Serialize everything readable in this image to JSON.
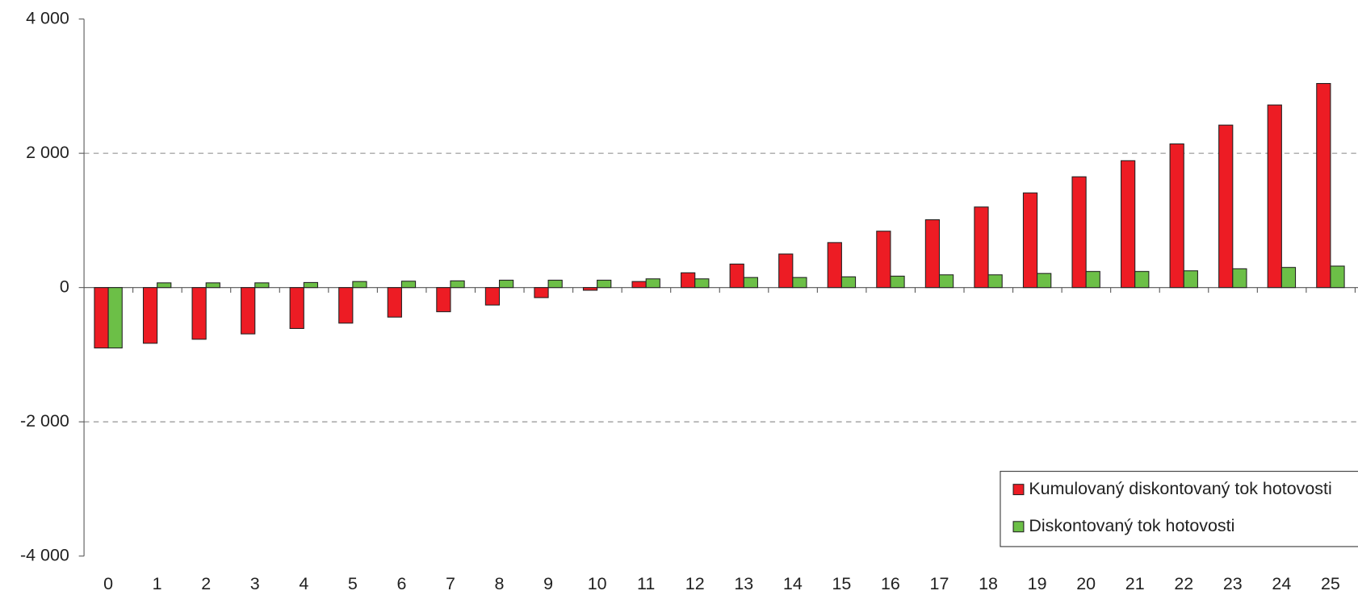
{
  "chart_data": {
    "type": "bar",
    "categories": [
      "0",
      "1",
      "2",
      "3",
      "4",
      "5",
      "6",
      "7",
      "8",
      "9",
      "10",
      "11",
      "12",
      "13",
      "14",
      "15",
      "16",
      "17",
      "18",
      "19",
      "20",
      "21",
      "22",
      "23",
      "24",
      "25"
    ],
    "series": [
      {
        "name": "Kumulovaný diskontovaný tok hotovosti",
        "color": "#ed1c24",
        "values": [
          -900,
          -830,
          -770,
          -690,
          -610,
          -530,
          -440,
          -360,
          -260,
          -150,
          -40,
          90,
          220,
          350,
          500,
          670,
          840,
          1010,
          1200,
          1410,
          1650,
          1890,
          2140,
          2420,
          2720,
          3040
        ]
      },
      {
        "name": "Diskontovaný tok hotovosti",
        "color": "#6cbf47",
        "values": [
          -900,
          70,
          70,
          70,
          75,
          90,
          95,
          100,
          110,
          110,
          110,
          130,
          130,
          150,
          150,
          160,
          170,
          190,
          190,
          210,
          240,
          240,
          250,
          280,
          300,
          320
        ]
      }
    ],
    "ylim": [
      -4000,
      4000
    ],
    "yticks": [
      {
        "value": -4000,
        "label": "-4 000"
      },
      {
        "value": -2000,
        "label": "-2 000"
      },
      0,
      {
        "value": 2000,
        "label": "2 000"
      },
      {
        "value": 4000,
        "label": "4 000"
      }
    ],
    "grid": true,
    "legend": "bottom-right"
  }
}
